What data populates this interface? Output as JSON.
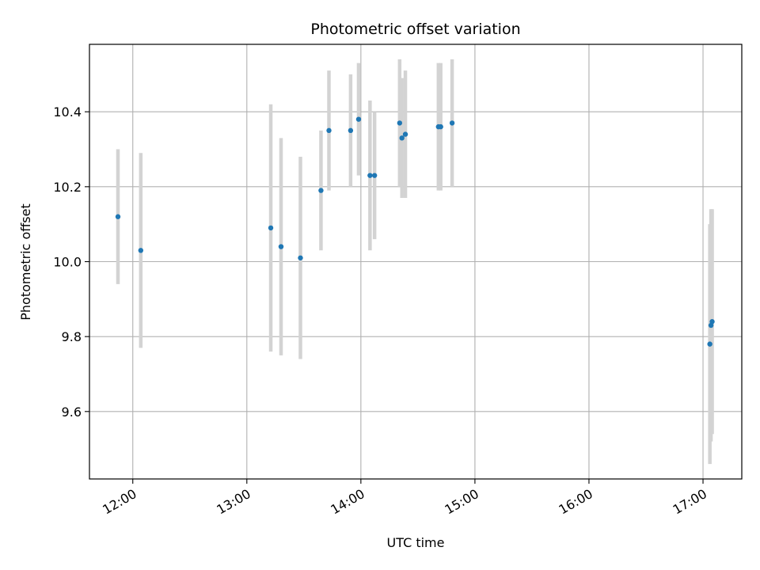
{
  "chart_data": {
    "type": "scatter",
    "title": "Photometric offset variation",
    "xlabel": "UTC time",
    "ylabel": "Photometric offset",
    "x_unit": "hours UTC",
    "x_ticks": [
      {
        "value": 12,
        "label": "12:00"
      },
      {
        "value": 13,
        "label": "13:00"
      },
      {
        "value": 14,
        "label": "14:00"
      },
      {
        "value": 15,
        "label": "15:00"
      },
      {
        "value": 16,
        "label": "16:00"
      },
      {
        "value": 17,
        "label": "17:00"
      }
    ],
    "y_ticks": [
      9.6,
      9.8,
      10.0,
      10.2,
      10.4
    ],
    "xlim": [
      11.62,
      17.34
    ],
    "ylim": [
      9.42,
      10.58
    ],
    "grid": true,
    "marker_color": "#1f77b4",
    "errorbar_color": "#d3d3d3",
    "points": [
      {
        "x": 11.87,
        "y": 10.12,
        "err": 0.18
      },
      {
        "x": 12.07,
        "y": 10.03,
        "err": 0.26
      },
      {
        "x": 13.21,
        "y": 10.09,
        "err": 0.33
      },
      {
        "x": 13.3,
        "y": 10.04,
        "err": 0.29
      },
      {
        "x": 13.47,
        "y": 10.01,
        "err": 0.27
      },
      {
        "x": 13.65,
        "y": 10.19,
        "err": 0.16
      },
      {
        "x": 13.72,
        "y": 10.35,
        "err": 0.16
      },
      {
        "x": 13.91,
        "y": 10.35,
        "err": 0.15
      },
      {
        "x": 13.98,
        "y": 10.38,
        "err": 0.15
      },
      {
        "x": 14.08,
        "y": 10.23,
        "err": 0.2
      },
      {
        "x": 14.12,
        "y": 10.23,
        "err": 0.17
      },
      {
        "x": 14.34,
        "y": 10.37,
        "err": 0.17
      },
      {
        "x": 14.36,
        "y": 10.33,
        "err": 0.16
      },
      {
        "x": 14.39,
        "y": 10.34,
        "err": 0.17
      },
      {
        "x": 14.68,
        "y": 10.36,
        "err": 0.17
      },
      {
        "x": 14.7,
        "y": 10.36,
        "err": 0.17
      },
      {
        "x": 14.8,
        "y": 10.37,
        "err": 0.17
      },
      {
        "x": 17.06,
        "y": 9.78,
        "err": 0.32
      },
      {
        "x": 17.07,
        "y": 9.83,
        "err": 0.31
      },
      {
        "x": 17.08,
        "y": 9.84,
        "err": 0.3
      }
    ]
  }
}
